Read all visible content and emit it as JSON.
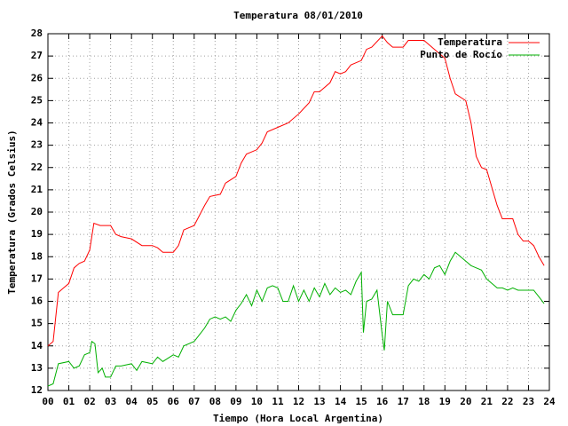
{
  "chart_data": {
    "type": "line",
    "title": "Temperatura 08/01/2010",
    "x_label": "Tiempo (Hora Local Argentina)",
    "y_label": "Temperatura (Grados Celsius)",
    "xlim": [
      0,
      24
    ],
    "ylim": [
      12,
      28
    ],
    "xticks": [
      {
        "value": 0,
        "label": "00"
      },
      {
        "value": 1,
        "label": "01"
      },
      {
        "value": 2,
        "label": "02"
      },
      {
        "value": 3,
        "label": "03"
      },
      {
        "value": 4,
        "label": "04"
      },
      {
        "value": 5,
        "label": "05"
      },
      {
        "value": 6,
        "label": "06"
      },
      {
        "value": 7,
        "label": "07"
      },
      {
        "value": 8,
        "label": "08"
      },
      {
        "value": 9,
        "label": "09"
      },
      10,
      11,
      12,
      13,
      14,
      15,
      16,
      17,
      18,
      19,
      20,
      21,
      22,
      23,
      24
    ],
    "yticks": [
      12,
      13,
      14,
      15,
      16,
      17,
      18,
      19,
      20,
      21,
      22,
      23,
      24,
      25,
      26,
      27,
      28
    ],
    "grid": true,
    "legend": "top-right",
    "series": [
      {
        "name": "Temperatura",
        "color": "#ff0000",
        "x": [
          0,
          0.25,
          0.5,
          0.75,
          1,
          1.25,
          1.5,
          1.75,
          2,
          2.2,
          2.5,
          3,
          3.25,
          3.5,
          4,
          4.5,
          5,
          5.25,
          5.5,
          6,
          6.25,
          6.5,
          7,
          7.5,
          7.75,
          8.25,
          8.5,
          9,
          9.25,
          9.5,
          10,
          10.25,
          10.5,
          11,
          11.5,
          12,
          12.5,
          12.75,
          13,
          13.5,
          13.75,
          14,
          14.25,
          14.5,
          15,
          15.25,
          15.5,
          16,
          16.25,
          16.5,
          17,
          17.25,
          17.5,
          18,
          18.5,
          19,
          19.25,
          19.5,
          20,
          20.25,
          20.5,
          20.75,
          21,
          21.25,
          21.5,
          21.75,
          22,
          22.25,
          22.5,
          22.75,
          23,
          23.25,
          23.5,
          23.75
        ],
        "values": [
          14.0,
          14.2,
          16.4,
          16.6,
          16.8,
          17.5,
          17.7,
          17.8,
          18.3,
          19.5,
          19.4,
          19.4,
          19.0,
          18.9,
          18.8,
          18.5,
          18.5,
          18.4,
          18.2,
          18.2,
          18.5,
          19.2,
          19.4,
          20.3,
          20.7,
          20.8,
          21.3,
          21.6,
          22.2,
          22.6,
          22.8,
          23.1,
          23.6,
          23.8,
          24.0,
          24.4,
          24.9,
          25.4,
          25.4,
          25.8,
          26.3,
          26.2,
          26.3,
          26.6,
          26.8,
          27.3,
          27.4,
          27.9,
          27.6,
          27.4,
          27.4,
          27.7,
          27.7,
          27.7,
          27.3,
          26.9,
          26.0,
          25.3,
          25.0,
          24.0,
          22.5,
          22.0,
          21.9,
          21.1,
          20.3,
          19.7,
          19.7,
          19.7,
          19.0,
          18.7,
          18.7,
          18.5,
          18.0,
          17.6
        ]
      },
      {
        "name": "Punto de Rocío",
        "color": "#00b000",
        "x": [
          0,
          0.25,
          0.5,
          1,
          1.25,
          1.5,
          1.75,
          2,
          2.1,
          2.25,
          2.4,
          2.6,
          2.75,
          3,
          3.25,
          3.5,
          4,
          4.25,
          4.5,
          5,
          5.25,
          5.5,
          6,
          6.25,
          6.5,
          7,
          7.25,
          7.5,
          7.75,
          8,
          8.25,
          8.5,
          8.75,
          9,
          9.25,
          9.5,
          9.75,
          10,
          10.25,
          10.5,
          10.75,
          11,
          11.25,
          11.5,
          11.75,
          12,
          12.25,
          12.5,
          12.75,
          13,
          13.25,
          13.5,
          13.75,
          14,
          14.25,
          14.5,
          14.75,
          15,
          15.1,
          15.25,
          15.5,
          15.75,
          16,
          16.1,
          16.25,
          16.5,
          17,
          17.25,
          17.5,
          17.75,
          18,
          18.25,
          18.5,
          18.75,
          19,
          19.25,
          19.5,
          19.75,
          20,
          20.25,
          20.5,
          20.75,
          21,
          21.25,
          21.5,
          21.75,
          22,
          22.25,
          22.5,
          22.75,
          23,
          23.25,
          23.5,
          23.75
        ],
        "values": [
          12.2,
          12.3,
          13.2,
          13.3,
          13.0,
          13.1,
          13.6,
          13.7,
          14.2,
          14.1,
          12.8,
          13.0,
          12.6,
          12.6,
          13.1,
          13.1,
          13.2,
          12.9,
          13.3,
          13.2,
          13.5,
          13.3,
          13.6,
          13.5,
          14.0,
          14.2,
          14.5,
          14.8,
          15.2,
          15.3,
          15.2,
          15.3,
          15.1,
          15.6,
          15.9,
          16.3,
          15.8,
          16.5,
          16.0,
          16.6,
          16.7,
          16.6,
          16.0,
          16.0,
          16.7,
          16.0,
          16.5,
          16.0,
          16.6,
          16.2,
          16.8,
          16.3,
          16.6,
          16.4,
          16.5,
          16.3,
          16.9,
          17.3,
          14.6,
          16.0,
          16.1,
          16.5,
          14.5,
          13.8,
          16.0,
          15.4,
          15.4,
          16.7,
          17.0,
          16.9,
          17.2,
          17.0,
          17.5,
          17.6,
          17.2,
          17.8,
          18.2,
          18.0,
          17.8,
          17.6,
          17.5,
          17.4,
          17.0,
          16.8,
          16.6,
          16.6,
          16.5,
          16.6,
          16.5,
          16.5,
          16.5,
          16.5,
          16.2,
          15.9
        ]
      }
    ]
  }
}
